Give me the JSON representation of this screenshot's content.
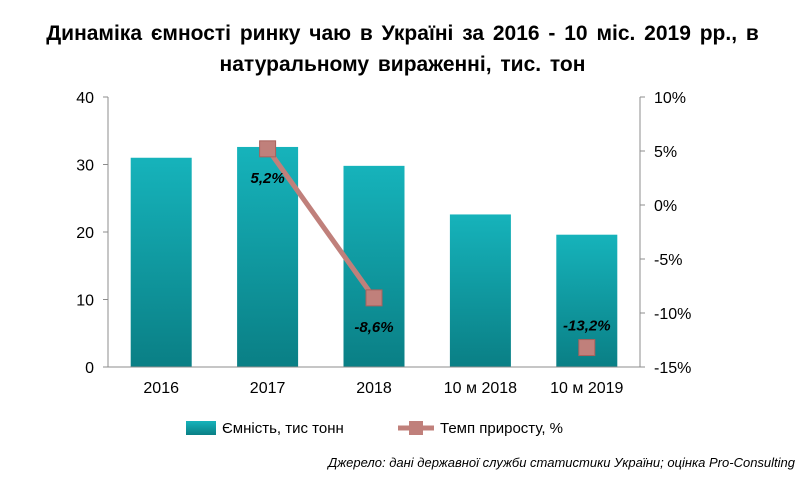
{
  "chart_data": {
    "type": "bar+line",
    "title_line1": "Динаміка ємності ринку чаю в Україні за 2016 - 10 міс. 2019 рр., в",
    "title_line2": "натуральному вираженні, тис. тон",
    "categories": [
      "2016",
      "2017",
      "2018",
      "10 м 2018",
      "10 м 2019"
    ],
    "bar_series": {
      "name": "Ємність, тис тонн",
      "values": [
        31.0,
        32.6,
        29.8,
        22.6,
        19.6
      ],
      "color": "#12a3ac"
    },
    "line_series": {
      "name": "Темп приросту, %",
      "points": [
        {
          "category": "2017",
          "value": 5.2,
          "label": "5,2%"
        },
        {
          "category": "2018",
          "value": -8.6,
          "label": "-8,6%"
        },
        {
          "category": "10 м 2019",
          "value": -13.2,
          "label": "-13,2%"
        }
      ],
      "connected": [
        true,
        false
      ],
      "color": "#c0807b",
      "marker_color": "#c0807b"
    },
    "y_left": {
      "min": 0,
      "max": 40,
      "ticks": [
        "0",
        "10",
        "20",
        "30",
        "40"
      ]
    },
    "y_right": {
      "min": -15,
      "max": 10,
      "ticks": [
        "-15%",
        "-10%",
        "-5%",
        "0%",
        "5%",
        "10%"
      ]
    },
    "grid": false,
    "legend_position": "bottom",
    "source": "Джерело: дані державної служби статистики України; оцінка Pro-Consulting"
  }
}
